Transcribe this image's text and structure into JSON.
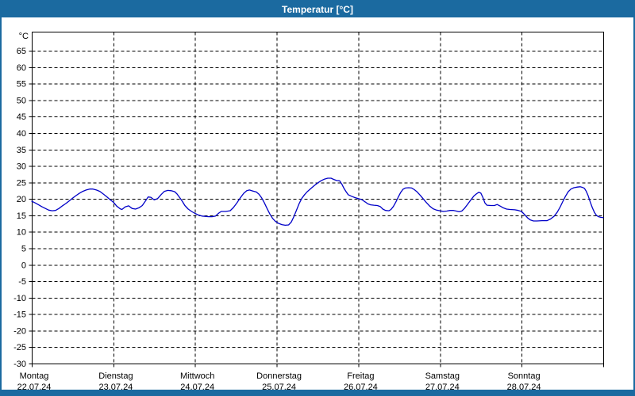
{
  "window": {
    "title": "Temperatur [°C]"
  },
  "colors": {
    "titlebar_bg": "#1B6AA0",
    "titlebar_text": "#FFFFFF",
    "frame": "#1B6AA0",
    "plot_bg": "#FFFFFF",
    "axis": "#000000",
    "grid": "#000000",
    "label_text": "#000000",
    "line": "#0000C8"
  },
  "chart_data": {
    "type": "line",
    "title": "Temperatur [°C]",
    "legend": "none",
    "grid": "dashed",
    "y_axis": {
      "unit": "°C",
      "min": -30,
      "top": 70.8,
      "tick_min": -30,
      "tick_max": 65,
      "tick_step": 5
    },
    "x_axis": {
      "total_hours": 168,
      "days": [
        {
          "name": "Montag",
          "date": "22.07.24"
        },
        {
          "name": "Dienstag",
          "date": "23.07.24"
        },
        {
          "name": "Mittwoch",
          "date": "24.07.24"
        },
        {
          "name": "Donnerstag",
          "date": "25.07.24"
        },
        {
          "name": "Freitag",
          "date": "26.07.24"
        },
        {
          "name": "Samstag",
          "date": "27.07.24"
        },
        {
          "name": "Sonntag",
          "date": "28.07.24"
        }
      ]
    },
    "series": [
      {
        "name": "Temperatur",
        "color": "#0000C8",
        "points": [
          [
            0,
            19.3
          ],
          [
            1,
            18.8
          ],
          [
            2,
            18.2
          ],
          [
            3,
            17.6
          ],
          [
            4,
            17.1
          ],
          [
            5,
            16.6
          ],
          [
            6,
            16.4
          ],
          [
            7,
            16.5
          ],
          [
            8,
            17.1
          ],
          [
            9,
            17.9
          ],
          [
            10,
            18.6
          ],
          [
            11,
            19.4
          ],
          [
            12,
            20.2
          ],
          [
            13,
            21.0
          ],
          [
            14,
            21.7
          ],
          [
            15,
            22.3
          ],
          [
            16,
            22.7
          ],
          [
            17,
            23.0
          ],
          [
            18,
            23.0
          ],
          [
            19,
            22.7
          ],
          [
            20,
            22.3
          ],
          [
            21,
            21.5
          ],
          [
            22,
            20.7
          ],
          [
            23,
            19.8
          ],
          [
            24,
            19.0
          ],
          [
            25,
            17.8
          ],
          [
            26,
            17.0
          ],
          [
            26.5,
            16.8
          ],
          [
            27.5,
            17.6
          ],
          [
            28.5,
            17.9
          ],
          [
            29.5,
            17.1
          ],
          [
            30.5,
            16.9
          ],
          [
            31.5,
            17.3
          ],
          [
            32.5,
            18.0
          ],
          [
            33.5,
            19.5
          ],
          [
            34.2,
            20.6
          ],
          [
            35,
            20.5
          ],
          [
            36,
            19.7
          ],
          [
            37,
            20.1
          ],
          [
            38,
            21.3
          ],
          [
            39,
            22.3
          ],
          [
            40,
            22.6
          ],
          [
            41,
            22.5
          ],
          [
            42,
            22.2
          ],
          [
            42.7,
            21.5
          ],
          [
            43.5,
            20.4
          ],
          [
            44.3,
            19.2
          ],
          [
            45,
            18.0
          ],
          [
            46,
            16.9
          ],
          [
            47,
            16.2
          ],
          [
            48,
            15.6
          ],
          [
            49,
            15.1
          ],
          [
            50,
            14.8
          ],
          [
            51,
            14.7
          ],
          [
            52,
            14.6
          ],
          [
            53,
            14.6
          ],
          [
            54,
            14.8
          ],
          [
            55,
            15.7
          ],
          [
            55.7,
            16.2
          ],
          [
            57,
            16.2
          ],
          [
            58.3,
            16.4
          ],
          [
            59.3,
            17.4
          ],
          [
            60.3,
            18.8
          ],
          [
            61.3,
            20.3
          ],
          [
            62.3,
            21.7
          ],
          [
            63.2,
            22.5
          ],
          [
            64,
            22.7
          ],
          [
            65,
            22.4
          ],
          [
            66,
            22.1
          ],
          [
            66.8,
            21.4
          ],
          [
            67.6,
            20.3
          ],
          [
            68.4,
            18.8
          ],
          [
            69.2,
            17.0
          ],
          [
            70,
            15.4
          ],
          [
            70.8,
            14.1
          ],
          [
            71.6,
            13.2
          ],
          [
            72.5,
            12.6
          ],
          [
            73.5,
            12.2
          ],
          [
            74.5,
            12.0
          ],
          [
            75.5,
            12.1
          ],
          [
            76.3,
            13.0
          ],
          [
            77,
            14.5
          ],
          [
            77.8,
            16.5
          ],
          [
            78.6,
            18.6
          ],
          [
            79.4,
            20.2
          ],
          [
            80.2,
            21.3
          ],
          [
            81,
            22.2
          ],
          [
            82,
            23.1
          ],
          [
            83,
            24.0
          ],
          [
            84,
            24.8
          ],
          [
            85,
            25.5
          ],
          [
            86,
            26.0
          ],
          [
            87,
            26.3
          ],
          [
            88,
            26.3
          ],
          [
            88.8,
            25.9
          ],
          [
            89.6,
            25.6
          ],
          [
            90.5,
            25.5
          ],
          [
            91.2,
            24.4
          ],
          [
            91.8,
            23.2
          ],
          [
            92.4,
            22.2
          ],
          [
            93,
            21.3
          ],
          [
            94,
            20.8
          ],
          [
            95,
            20.4
          ],
          [
            96,
            20.1
          ],
          [
            97,
            19.8
          ],
          [
            98,
            19.1
          ],
          [
            98.8,
            18.5
          ],
          [
            99.6,
            18.2
          ],
          [
            100.6,
            18.1
          ],
          [
            101.6,
            18.0
          ],
          [
            102.4,
            17.7
          ],
          [
            103.2,
            16.9
          ],
          [
            104,
            16.5
          ],
          [
            105,
            16.4
          ],
          [
            105.6,
            16.8
          ],
          [
            106.3,
            17.7
          ],
          [
            107,
            19.0
          ],
          [
            107.7,
            20.5
          ],
          [
            108.4,
            21.9
          ],
          [
            109.1,
            22.9
          ],
          [
            109.8,
            23.3
          ],
          [
            110.8,
            23.4
          ],
          [
            111.7,
            23.3
          ],
          [
            112.5,
            22.8
          ],
          [
            113.3,
            22.1
          ],
          [
            114.2,
            21.1
          ],
          [
            115.1,
            20.0
          ],
          [
            116,
            18.9
          ],
          [
            117,
            17.8
          ],
          [
            118,
            17.0
          ],
          [
            119,
            16.6
          ],
          [
            120,
            16.4
          ],
          [
            121,
            16.2
          ],
          [
            122,
            16.3
          ],
          [
            123,
            16.5
          ],
          [
            124,
            16.5
          ],
          [
            124.8,
            16.3
          ],
          [
            125.6,
            16.1
          ],
          [
            126.4,
            16.3
          ],
          [
            127.2,
            17.1
          ],
          [
            128,
            18.2
          ],
          [
            129,
            19.6
          ],
          [
            130,
            20.9
          ],
          [
            130.8,
            21.6
          ],
          [
            131.4,
            22.0
          ],
          [
            132,
            21.8
          ],
          [
            132.6,
            20.5
          ],
          [
            133.2,
            18.8
          ],
          [
            133.8,
            18.1
          ],
          [
            135,
            18.0
          ],
          [
            136,
            18.0
          ],
          [
            136.8,
            18.3
          ],
          [
            137.6,
            17.9
          ],
          [
            138.6,
            17.3
          ],
          [
            139.6,
            16.9
          ],
          [
            140.6,
            16.8
          ],
          [
            142,
            16.7
          ],
          [
            143,
            16.5
          ],
          [
            144,
            16.2
          ],
          [
            145,
            15.1
          ],
          [
            145.8,
            14.2
          ],
          [
            146.6,
            13.6
          ],
          [
            147.5,
            13.3
          ],
          [
            148.5,
            13.3
          ],
          [
            150,
            13.4
          ],
          [
            151.5,
            13.4
          ],
          [
            152.5,
            13.9
          ],
          [
            153.5,
            14.7
          ],
          [
            154.5,
            16.0
          ],
          [
            155.3,
            17.5
          ],
          [
            156.1,
            19.2
          ],
          [
            156.9,
            20.8
          ],
          [
            157.7,
            22.2
          ],
          [
            158.5,
            23.0
          ],
          [
            159.4,
            23.4
          ],
          [
            160.4,
            23.6
          ],
          [
            161.2,
            23.7
          ],
          [
            161.9,
            23.5
          ],
          [
            162.5,
            23.2
          ],
          [
            163,
            22.3
          ],
          [
            163.6,
            20.9
          ],
          [
            164.2,
            19.0
          ],
          [
            164.8,
            17.3
          ],
          [
            165.4,
            15.9
          ],
          [
            166,
            15.0
          ],
          [
            166.6,
            14.6
          ],
          [
            167.3,
            14.4
          ],
          [
            168,
            14.3
          ]
        ]
      }
    ]
  }
}
